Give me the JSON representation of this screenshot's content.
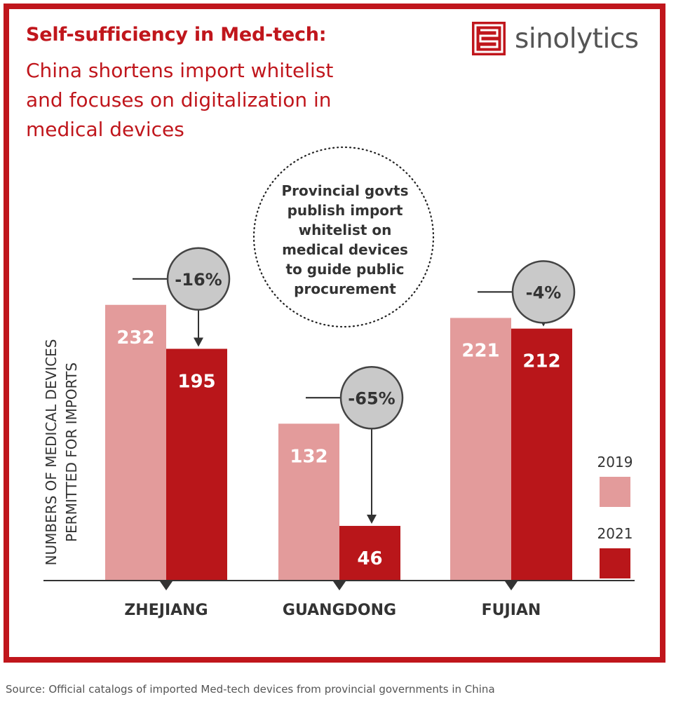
{
  "header": {
    "title": "Self-sufficiency in Med-tech:",
    "subtitle_lines": [
      "China shortens import whitelist",
      "and focuses on digitalization in",
      "medical devices"
    ]
  },
  "logo": {
    "text": "sinolytics",
    "icon": "sinolytics-logo-icon"
  },
  "source": "Source: Official catalogs of imported Med-tech devices from provincial governments in China",
  "colors": {
    "accent": "#c0161c",
    "bar_2019": "#e39b9b",
    "bar_2021": "#b9161a",
    "badge_fill": "#c9c9c9",
    "text_dark": "#333333"
  },
  "chart_data": {
    "type": "bar",
    "categories": [
      "ZHEJIANG",
      "GUANGDONG",
      "FUJIAN"
    ],
    "series": [
      {
        "name": "2019",
        "values": [
          232,
          132,
          221
        ]
      },
      {
        "name": "2021",
        "values": [
          195,
          46,
          212
        ]
      }
    ],
    "change_labels": [
      "-16%",
      "-65%",
      "-4%"
    ],
    "ylabel_lines": [
      "NUMBERS OF MEDICAL DEVICES",
      "PERMITTED FOR IMPORTS"
    ],
    "ylim": [
      0,
      250
    ],
    "grid": false,
    "legend_position": "right",
    "annotation_lines": [
      "Provincial govts",
      "publish import",
      "whitelist on",
      "medical devices",
      "to guide public",
      "procurement"
    ]
  }
}
